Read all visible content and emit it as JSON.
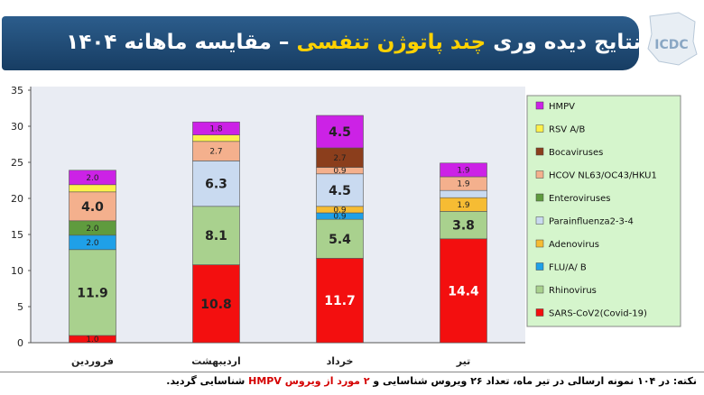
{
  "header": {
    "title_part1": "نتایج دیده وری",
    "title_highlight": "چند پاتوژن تنفسی",
    "title_part2": "– مقایسه ماهانه ۱۴۰۴",
    "logo_text": "ICDC"
  },
  "note": {
    "prefix": "نکته: در ۱۰۴ نمونه ارسالی در تیر ماه، تعداد ۲۶ ویروس شناسایی و",
    "highlight": "۲ مورد از ویروس HMPV",
    "suffix": "شناسایی گردید."
  },
  "colors": {
    "panel_bg": "#e9ecf3",
    "legend_bg": "#d5f5cc",
    "banner": "#1f4a73"
  },
  "chart_data": {
    "type": "bar",
    "stacked": true,
    "categories": [
      "فروردین",
      "اردیبهشت",
      "خرداد",
      "تیر"
    ],
    "ylim": [
      0,
      35
    ],
    "yticks": [
      0,
      5,
      10,
      15,
      20,
      25,
      30,
      35
    ],
    "legend_position": "right",
    "series": [
      {
        "name": "SARS-CoV2(Covid-19)",
        "color": "#f30f0f",
        "values": [
          1.0,
          10.8,
          11.7,
          14.4
        ],
        "labels": [
          "1.0",
          "10.8",
          "11.7",
          "14.4"
        ],
        "label_colors": [
          "#222",
          "#222",
          "#ffffff",
          "#ffffff"
        ]
      },
      {
        "name": "Rhinovirus",
        "color": "#a9d18e",
        "values": [
          11.9,
          8.1,
          5.4,
          3.8
        ],
        "labels": [
          "11.9",
          "8.1",
          "5.4",
          "3.8"
        ]
      },
      {
        "name": "FLU/A/ B",
        "color": "#1fa0e8",
        "values": [
          2.0,
          0,
          0.9,
          0
        ],
        "labels": [
          "2.0",
          "",
          "0.9",
          ""
        ]
      },
      {
        "name": "Adenovirus",
        "color": "#f6bc33",
        "values": [
          0,
          0,
          0.9,
          1.9
        ],
        "labels": [
          "",
          "",
          "0.9",
          "1.9"
        ]
      },
      {
        "name": "Parainfluenza2-3-4",
        "color": "#c9daf0",
        "values": [
          0,
          6.3,
          4.5,
          1.0
        ],
        "labels": [
          "",
          "6.3",
          "4.5",
          ""
        ]
      },
      {
        "name": "Enteroviruses",
        "color": "#5f9b3e",
        "values": [
          2.0,
          0,
          0,
          0
        ],
        "labels": [
          "2.0",
          "",
          "",
          ""
        ]
      },
      {
        "name": "HCOV NL63/OC43/HKU1",
        "color": "#f4b08d",
        "values": [
          4.0,
          2.7,
          0.9,
          1.9
        ],
        "labels": [
          "4.0",
          "2.7",
          "0.9",
          "1.9"
        ]
      },
      {
        "name": "Bocaviruses",
        "color": "#8b3e1c",
        "values": [
          0,
          0,
          2.7,
          0
        ],
        "labels": [
          "",
          "",
          "2.7",
          ""
        ]
      },
      {
        "name": "RSV A/B",
        "color": "#fdf04a",
        "values": [
          1.0,
          0.9,
          0,
          0
        ],
        "labels": [
          "",
          "",
          "",
          ""
        ]
      },
      {
        "name": "HMPV",
        "color": "#cc22e6",
        "values": [
          2.0,
          1.8,
          4.5,
          1.9
        ],
        "labels": [
          "2.0",
          "1.8",
          "4.5",
          "1.9"
        ]
      }
    ]
  }
}
